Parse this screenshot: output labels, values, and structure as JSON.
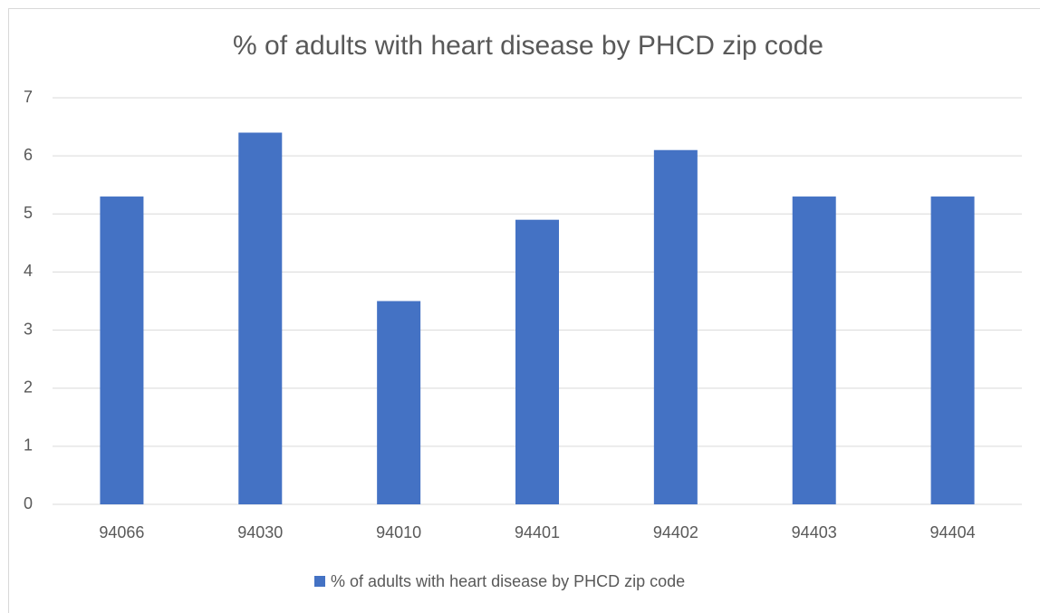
{
  "chart_data": {
    "type": "bar",
    "title": "% of adults with heart disease by PHCD zip code",
    "categories": [
      "94066",
      "94030",
      "94010",
      "94401",
      "94402",
      "94403",
      "94404"
    ],
    "series": [
      {
        "name": "% of adults with heart disease by PHCD zip code",
        "color": "#4472c4",
        "values": [
          5.3,
          6.4,
          3.5,
          4.9,
          6.1,
          5.3,
          5.3
        ]
      }
    ],
    "ylim": [
      0,
      7
    ],
    "yticks": [
      0,
      1,
      2,
      3,
      4,
      5,
      6,
      7
    ],
    "grid": true,
    "legend": "bottom"
  }
}
